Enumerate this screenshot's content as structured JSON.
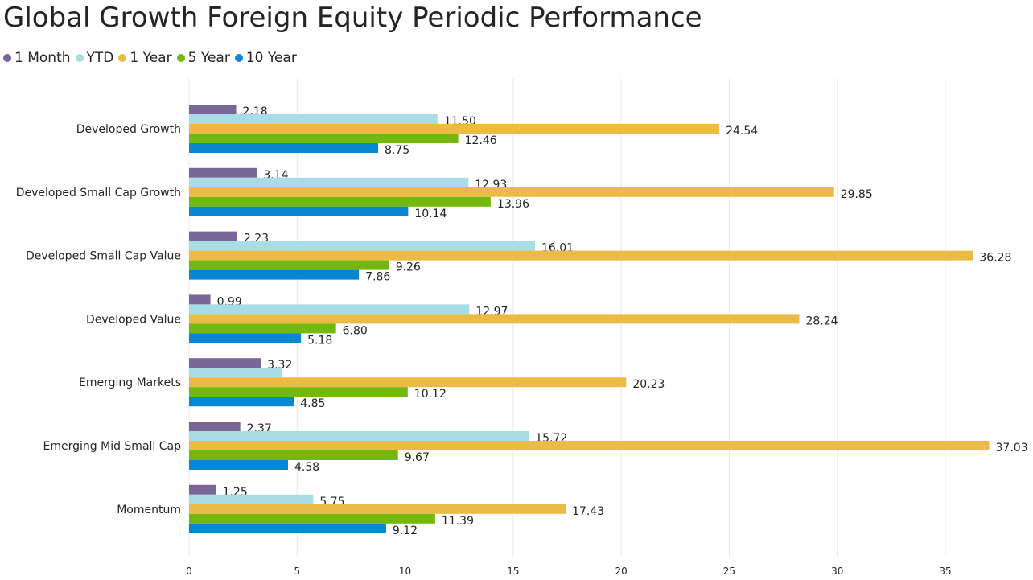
{
  "chart_data": {
    "type": "bar",
    "orientation": "horizontal",
    "title": "Global Growth Foreign Equity Periodic Performance",
    "categories": [
      "Developed Growth",
      "Developed Small Cap Growth",
      "Developed Small Cap Value",
      "Developed Value",
      "Emerging Markets",
      "Emerging Mid Small Cap",
      "Momentum"
    ],
    "series": [
      {
        "name": "1 Month",
        "color": "#7b6797",
        "values": [
          2.18,
          3.14,
          2.23,
          0.99,
          3.32,
          2.37,
          1.25
        ]
      },
      {
        "name": "YTD",
        "color": "#a8dde6",
        "values": [
          11.5,
          12.93,
          16.01,
          12.97,
          4.3,
          15.72,
          5.75
        ]
      },
      {
        "name": "1 Year",
        "color": "#ecbb45",
        "values": [
          24.54,
          29.85,
          36.28,
          28.24,
          20.23,
          37.03,
          17.43
        ]
      },
      {
        "name": "5 Year",
        "color": "#73b80e",
        "values": [
          12.46,
          13.96,
          9.26,
          6.8,
          10.12,
          9.67,
          11.39
        ]
      },
      {
        "name": "10 Year",
        "color": "#0887d1",
        "values": [
          8.75,
          10.14,
          7.86,
          5.18,
          4.85,
          4.58,
          9.12
        ]
      }
    ],
    "value_labels_shown": [
      [
        true,
        true,
        true,
        true,
        true,
        true,
        true
      ],
      [
        true,
        true,
        true,
        true,
        false,
        true,
        true
      ],
      [
        true,
        true,
        true,
        true,
        true,
        true,
        true
      ],
      [
        true,
        true,
        true,
        true,
        true,
        true,
        true
      ],
      [
        true,
        true,
        true,
        true,
        true,
        true,
        true
      ]
    ],
    "xticks": [
      0,
      5,
      10,
      15,
      20,
      25,
      30,
      35
    ],
    "xlim": [
      0,
      38.5
    ],
    "grid": true,
    "legend_position": "top-left"
  }
}
